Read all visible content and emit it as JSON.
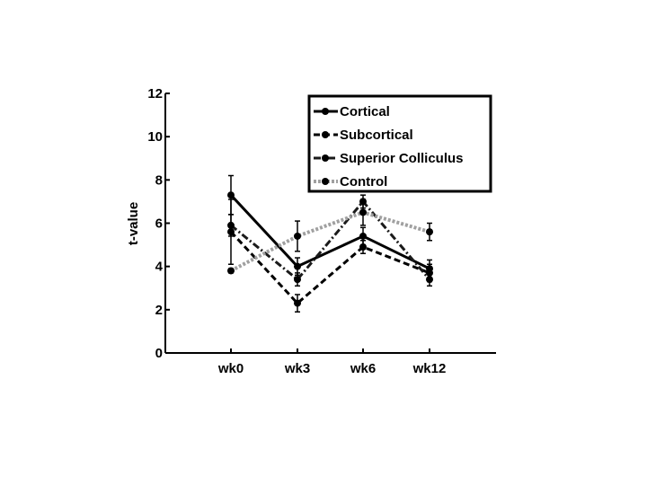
{
  "chart_data": {
    "type": "line",
    "title": "",
    "xlabel": "",
    "ylabel": "t-value",
    "categories": [
      "wk0",
      "wk3",
      "wk6",
      "wk12"
    ],
    "ylim": [
      0,
      12
    ],
    "yticks": [
      0,
      2,
      4,
      6,
      8,
      10,
      12
    ],
    "grid": false,
    "legend": "top-right",
    "series": [
      {
        "name": "Cortical",
        "values": [
          7.3,
          4.0,
          5.4,
          3.9
        ],
        "err": [
          0.9,
          0.4,
          0.4,
          0.4
        ],
        "color": "#000000",
        "style": "solid"
      },
      {
        "name": "Subcortical",
        "values": [
          5.6,
          2.3,
          4.9,
          3.7
        ],
        "err": [
          1.5,
          0.4,
          0.3,
          0.4
        ],
        "color": "#000000",
        "style": "dashed"
      },
      {
        "name": "Superior Colliculus",
        "values": [
          5.9,
          3.4,
          7.0,
          3.4
        ],
        "err": [
          0.5,
          0.3,
          0.3,
          0.3
        ],
        "color": "#1a1a1a",
        "style": "dashdot"
      },
      {
        "name": "Control",
        "values": [
          3.8,
          5.4,
          6.5,
          5.6
        ],
        "err": [
          0.1,
          0.7,
          0.6,
          0.4
        ],
        "color": "#a0a0a0",
        "style": "dotted"
      }
    ]
  }
}
